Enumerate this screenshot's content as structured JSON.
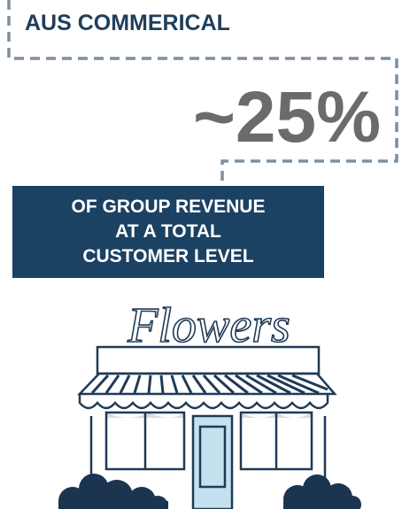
{
  "header": {
    "title": "AUS COMMERICAL"
  },
  "stat": {
    "value": "~25%"
  },
  "caption": {
    "lines": [
      "OF GROUP REVENUE",
      "AT A TOTAL",
      "CUSTOMER LEVEL"
    ]
  },
  "illustration": {
    "sign": "Flowers"
  }
}
